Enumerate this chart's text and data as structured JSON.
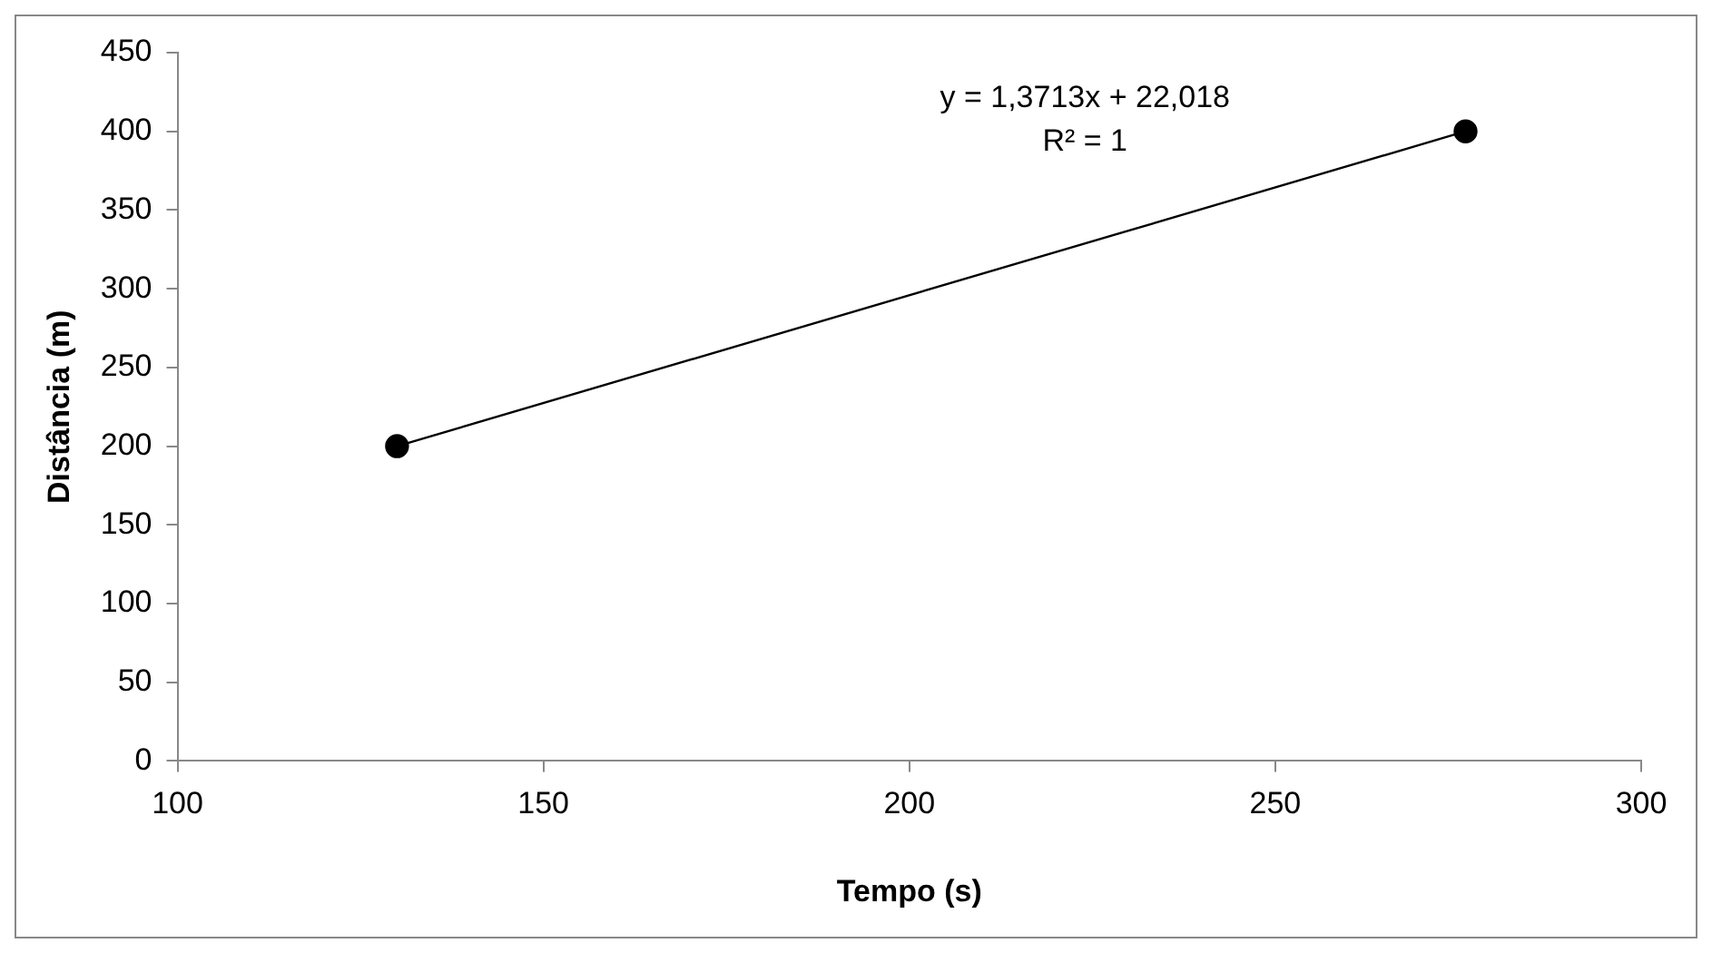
{
  "chart_data": {
    "type": "line",
    "xlabel": "Tempo (s)",
    "ylabel": "Distância (m)",
    "x": [
      130,
      276
    ],
    "series": [
      {
        "color": "#000000",
        "values": [
          200,
          400
        ]
      }
    ],
    "xlim": [
      100,
      300
    ],
    "xticks": [
      100,
      150,
      200,
      250,
      300
    ],
    "ylim": [
      0,
      450
    ],
    "yticks": [
      0,
      50,
      100,
      150,
      200,
      250,
      300,
      350,
      400,
      450
    ],
    "grid": false,
    "legend": false,
    "marker": "circle",
    "line_style": "solid",
    "annotations": [
      "y = 1,3713x + 22,018",
      "R² = 1"
    ]
  }
}
